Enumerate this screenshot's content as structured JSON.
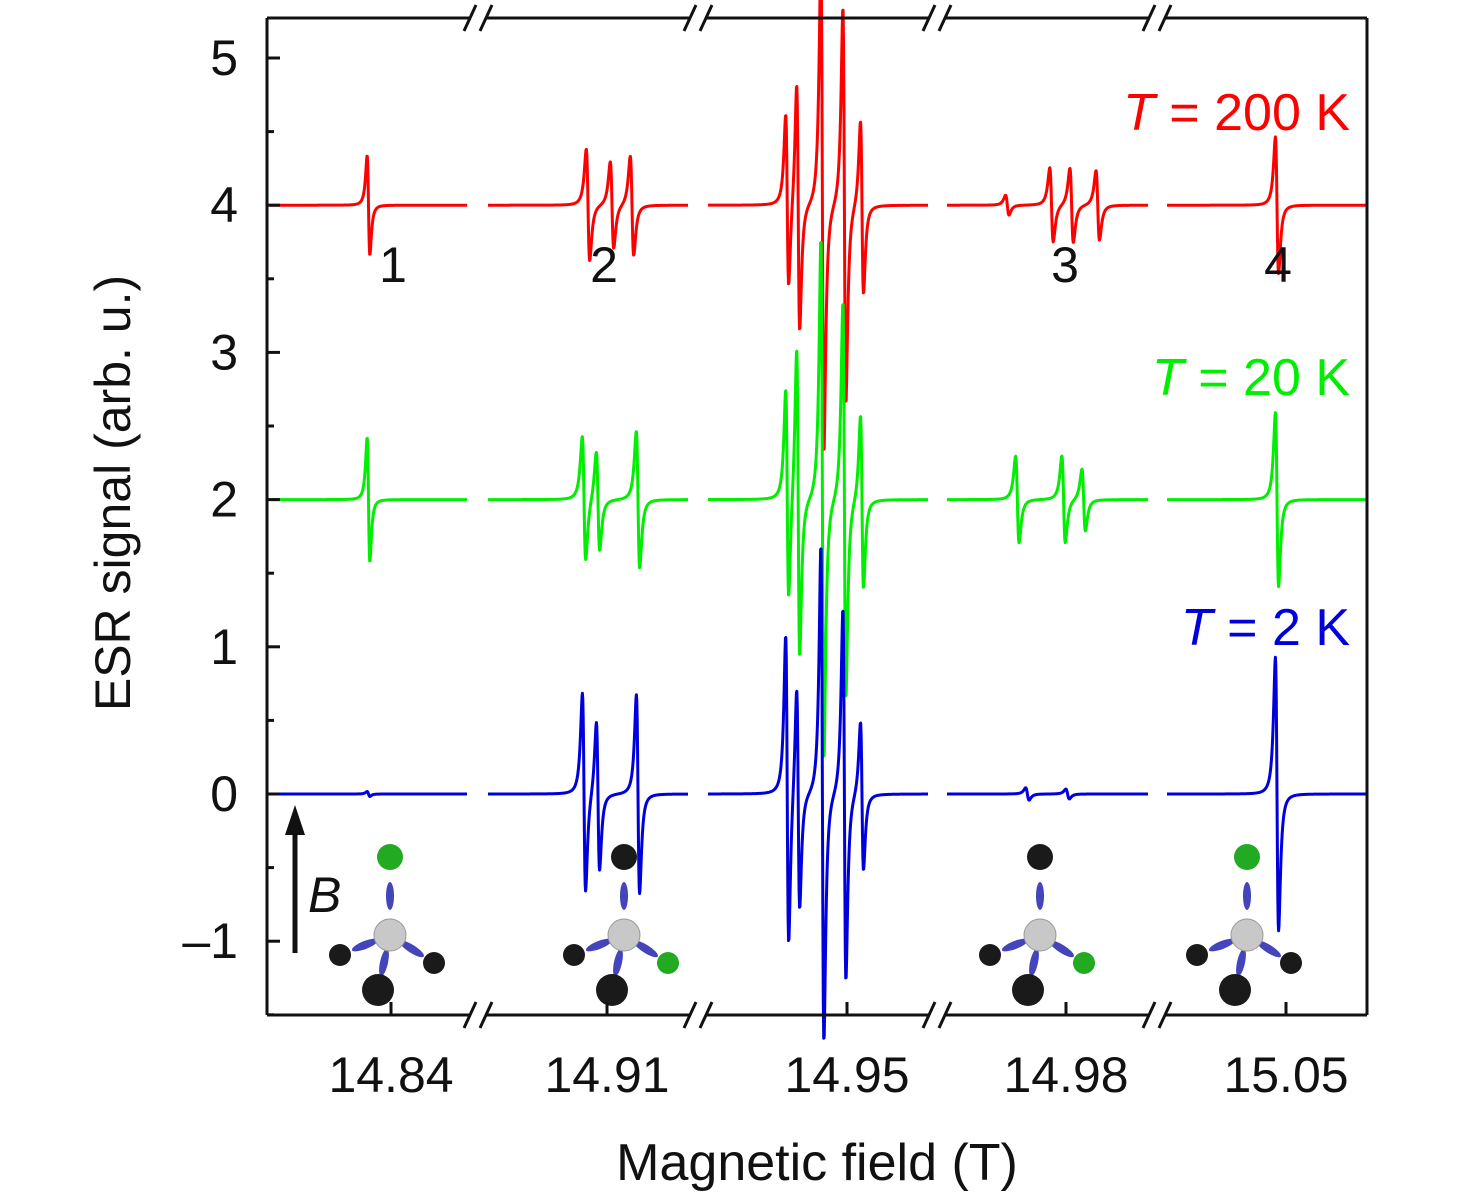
{
  "chart_data": {
    "type": "line",
    "xlabel": "Magnetic field (T)",
    "ylabel": "ESR signal (arb. u.)",
    "ylim": [
      -1.5,
      5.25
    ],
    "yticks": [
      "–1",
      "0",
      "1",
      "2",
      "3",
      "4",
      "5"
    ],
    "ytick_values": [
      -1,
      0,
      1,
      2,
      3,
      4,
      5
    ],
    "x_axis_broken": true,
    "segments": [
      {
        "tick_label": "14.84",
        "peak_label": "1"
      },
      {
        "tick_label": "14.91",
        "peak_label": "2"
      },
      {
        "tick_label": "14.95",
        "peak_label": ""
      },
      {
        "tick_label": "14.98",
        "peak_label": "3"
      },
      {
        "tick_label": "15.05",
        "peak_label": "4"
      }
    ],
    "series": [
      {
        "name_var": "T",
        "name_rest": " = 200 K",
        "color": "#ff0000",
        "offset": 4,
        "lines": [
          {
            "seg": 0,
            "peaks": [
              {
                "c": 0.5,
                "a": 0.4,
                "w": 0.012
              }
            ]
          },
          {
            "seg": 1,
            "peaks": [
              {
                "c": 0.5,
                "a": 0.45,
                "w": 0.015
              },
              {
                "c": 0.62,
                "a": 0.35,
                "w": 0.015
              },
              {
                "c": 0.72,
                "a": 0.4,
                "w": 0.015
              }
            ]
          },
          {
            "seg": 2,
            "peaks": [
              {
                "c": 0.36,
                "a": 0.7,
                "w": 0.012
              },
              {
                "c": 0.41,
                "a": 1.0,
                "w": 0.012
              },
              {
                "c": 0.52,
                "a": 2.0,
                "w": 0.012
              },
              {
                "c": 0.62,
                "a": 1.6,
                "w": 0.012
              },
              {
                "c": 0.7,
                "a": 0.7,
                "w": 0.012
              }
            ]
          },
          {
            "seg": 3,
            "peaks": [
              {
                "c": 0.3,
                "a": 0.08,
                "w": 0.015
              },
              {
                "c": 0.52,
                "a": 0.3,
                "w": 0.015
              },
              {
                "c": 0.62,
                "a": 0.3,
                "w": 0.015
              },
              {
                "c": 0.75,
                "a": 0.28,
                "w": 0.015
              }
            ]
          },
          {
            "seg": 4,
            "peaks": [
              {
                "c": 0.55,
                "a": 0.55,
                "w": 0.014
              }
            ]
          }
        ]
      },
      {
        "name_var": "T",
        "name_rest": " = 20 K",
        "color": "#00ee00",
        "offset": 2,
        "lines": [
          {
            "seg": 0,
            "peaks": [
              {
                "c": 0.5,
                "a": 0.5,
                "w": 0.012
              }
            ]
          },
          {
            "seg": 1,
            "peaks": [
              {
                "c": 0.48,
                "a": 0.5,
                "w": 0.015
              },
              {
                "c": 0.55,
                "a": 0.4,
                "w": 0.015
              },
              {
                "c": 0.75,
                "a": 0.55,
                "w": 0.015
              }
            ]
          },
          {
            "seg": 2,
            "peaks": [
              {
                "c": 0.36,
                "a": 0.85,
                "w": 0.012
              },
              {
                "c": 0.41,
                "a": 1.25,
                "w": 0.012
              },
              {
                "c": 0.52,
                "a": 2.1,
                "w": 0.012
              },
              {
                "c": 0.62,
                "a": 1.6,
                "w": 0.012
              },
              {
                "c": 0.7,
                "a": 0.7,
                "w": 0.012
              }
            ]
          },
          {
            "seg": 3,
            "peaks": [
              {
                "c": 0.35,
                "a": 0.35,
                "w": 0.015
              },
              {
                "c": 0.58,
                "a": 0.35,
                "w": 0.015
              },
              {
                "c": 0.68,
                "a": 0.25,
                "w": 0.015
              }
            ]
          },
          {
            "seg": 4,
            "peaks": [
              {
                "c": 0.55,
                "a": 0.7,
                "w": 0.014
              }
            ]
          }
        ]
      },
      {
        "name_var": "T",
        "name_rest": " = 2 K",
        "color": "#0000dd",
        "offset": 0,
        "lines": [
          {
            "seg": 0,
            "peaks": [
              {
                "c": 0.5,
                "a": 0.02,
                "w": 0.012
              }
            ]
          },
          {
            "seg": 1,
            "peaks": [
              {
                "c": 0.48,
                "a": 0.8,
                "w": 0.014
              },
              {
                "c": 0.55,
                "a": 0.6,
                "w": 0.014
              },
              {
                "c": 0.75,
                "a": 0.8,
                "w": 0.014
              }
            ]
          },
          {
            "seg": 2,
            "peaks": [
              {
                "c": 0.36,
                "a": 1.25,
                "w": 0.012
              },
              {
                "c": 0.41,
                "a": 0.9,
                "w": 0.012
              },
              {
                "c": 0.52,
                "a": 2.0,
                "w": 0.012
              },
              {
                "c": 0.62,
                "a": 1.5,
                "w": 0.012
              },
              {
                "c": 0.7,
                "a": 0.6,
                "w": 0.012
              }
            ]
          },
          {
            "seg": 3,
            "peaks": [
              {
                "c": 0.4,
                "a": 0.05,
                "w": 0.015
              },
              {
                "c": 0.6,
                "a": 0.04,
                "w": 0.015
              }
            ]
          },
          {
            "seg": 4,
            "peaks": [
              {
                "c": 0.55,
                "a": 1.1,
                "w": 0.014
              }
            ]
          }
        ]
      }
    ]
  },
  "inset": {
    "field_arrow_label": "B",
    "molecules": [
      {
        "seg": 0,
        "green_site": "top"
      },
      {
        "seg": 1,
        "green_site": "right"
      },
      {
        "seg": 3,
        "green_site": "right"
      },
      {
        "seg": 4,
        "green_site": "top"
      }
    ],
    "colors": {
      "green_atom": "#22aa22",
      "black_atom": "#1a1a1a",
      "center_atom": "#c8c8c8",
      "bond": "#4444bb"
    }
  }
}
